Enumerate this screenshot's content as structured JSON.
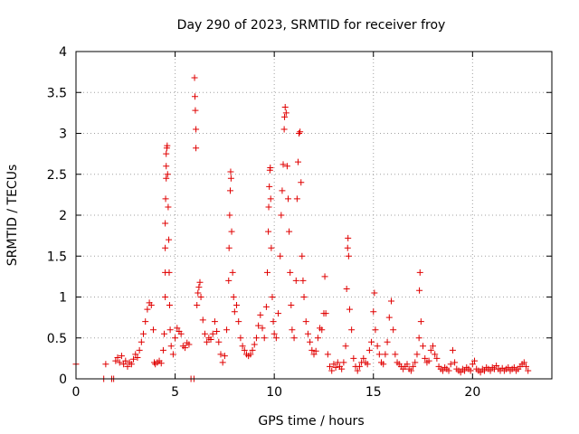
{
  "chart_data": {
    "type": "scatter",
    "title": "Day 290 of 2023, SRMTID for receiver froy",
    "xlabel": "GPS time / hours",
    "ylabel": "SRMTID / TECUs",
    "xlim": [
      0,
      24
    ],
    "ylim": [
      0,
      4
    ],
    "x_ticks": [
      0,
      5,
      10,
      15,
      20
    ],
    "x_tick_labels": [
      "0",
      "5",
      "10",
      "15",
      "20"
    ],
    "y_ticks": [
      0,
      0.5,
      1,
      1.5,
      2,
      2.5,
      3,
      3.5,
      4
    ],
    "y_tick_labels": [
      "0",
      "0.5",
      "1",
      "1.5",
      "2",
      "2.5",
      "3",
      "3.5",
      "4"
    ],
    "grid": true,
    "marker": "plus",
    "series": [
      {
        "name": "SRMTID",
        "color": "#e00000",
        "points": [
          [
            0.0,
            0.18
          ],
          [
            1.4,
            0.0
          ],
          [
            1.5,
            0.18
          ],
          [
            1.8,
            0.0
          ],
          [
            1.9,
            0.0
          ],
          [
            2.0,
            0.22
          ],
          [
            2.1,
            0.26
          ],
          [
            2.2,
            0.2
          ],
          [
            2.3,
            0.28
          ],
          [
            2.4,
            0.18
          ],
          [
            2.5,
            0.22
          ],
          [
            2.6,
            0.15
          ],
          [
            2.7,
            0.2
          ],
          [
            2.8,
            0.18
          ],
          [
            2.9,
            0.24
          ],
          [
            3.0,
            0.3
          ],
          [
            3.1,
            0.26
          ],
          [
            3.2,
            0.35
          ],
          [
            3.3,
            0.45
          ],
          [
            3.4,
            0.55
          ],
          [
            3.5,
            0.7
          ],
          [
            3.6,
            0.85
          ],
          [
            3.7,
            0.93
          ],
          [
            3.8,
            0.9
          ],
          [
            3.9,
            0.6
          ],
          [
            3.95,
            0.2
          ],
          [
            4.0,
            0.18
          ],
          [
            4.1,
            0.2
          ],
          [
            4.2,
            0.22
          ],
          [
            4.3,
            0.19
          ],
          [
            4.4,
            0.35
          ],
          [
            4.45,
            0.55
          ],
          [
            4.5,
            1.0
          ],
          [
            4.5,
            1.3
          ],
          [
            4.5,
            1.6
          ],
          [
            4.5,
            1.9
          ],
          [
            4.52,
            2.2
          ],
          [
            4.55,
            2.45
          ],
          [
            4.55,
            2.6
          ],
          [
            4.55,
            2.75
          ],
          [
            4.58,
            2.82
          ],
          [
            4.6,
            2.85
          ],
          [
            4.62,
            2.5
          ],
          [
            4.65,
            2.1
          ],
          [
            4.68,
            1.7
          ],
          [
            4.7,
            1.3
          ],
          [
            4.72,
            0.9
          ],
          [
            4.75,
            0.6
          ],
          [
            4.8,
            0.4
          ],
          [
            4.9,
            0.3
          ],
          [
            5.0,
            0.5
          ],
          [
            5.1,
            0.62
          ],
          [
            5.2,
            0.58
          ],
          [
            5.3,
            0.55
          ],
          [
            5.4,
            0.4
          ],
          [
            5.5,
            0.38
          ],
          [
            5.6,
            0.44
          ],
          [
            5.7,
            0.42
          ],
          [
            5.8,
            0.0
          ],
          [
            5.95,
            0.0
          ],
          [
            5.98,
            3.68
          ],
          [
            6.0,
            3.45
          ],
          [
            6.02,
            3.28
          ],
          [
            6.05,
            3.05
          ],
          [
            6.05,
            2.82
          ],
          [
            6.1,
            0.9
          ],
          [
            6.15,
            1.05
          ],
          [
            6.2,
            1.12
          ],
          [
            6.25,
            1.18
          ],
          [
            6.3,
            1.0
          ],
          [
            6.4,
            0.72
          ],
          [
            6.5,
            0.55
          ],
          [
            6.6,
            0.45
          ],
          [
            6.7,
            0.5
          ],
          [
            6.8,
            0.48
          ],
          [
            6.9,
            0.55
          ],
          [
            7.0,
            0.7
          ],
          [
            7.1,
            0.58
          ],
          [
            7.2,
            0.45
          ],
          [
            7.3,
            0.3
          ],
          [
            7.4,
            0.2
          ],
          [
            7.5,
            0.28
          ],
          [
            7.6,
            0.6
          ],
          [
            7.7,
            1.2
          ],
          [
            7.72,
            1.6
          ],
          [
            7.75,
            2.0
          ],
          [
            7.78,
            2.3
          ],
          [
            7.8,
            2.53
          ],
          [
            7.82,
            2.45
          ],
          [
            7.85,
            1.8
          ],
          [
            7.9,
            1.3
          ],
          [
            7.95,
            1.0
          ],
          [
            8.0,
            0.82
          ],
          [
            8.1,
            0.9
          ],
          [
            8.2,
            0.7
          ],
          [
            8.3,
            0.5
          ],
          [
            8.4,
            0.4
          ],
          [
            8.5,
            0.35
          ],
          [
            8.6,
            0.3
          ],
          [
            8.7,
            0.28
          ],
          [
            8.8,
            0.3
          ],
          [
            8.9,
            0.35
          ],
          [
            9.0,
            0.42
          ],
          [
            9.1,
            0.5
          ],
          [
            9.2,
            0.65
          ],
          [
            9.3,
            0.78
          ],
          [
            9.4,
            0.62
          ],
          [
            9.5,
            0.5
          ],
          [
            9.6,
            0.88
          ],
          [
            9.65,
            1.3
          ],
          [
            9.7,
            1.8
          ],
          [
            9.72,
            2.1
          ],
          [
            9.75,
            2.35
          ],
          [
            9.78,
            2.55
          ],
          [
            9.8,
            2.58
          ],
          [
            9.82,
            2.2
          ],
          [
            9.85,
            1.6
          ],
          [
            9.9,
            1.0
          ],
          [
            9.95,
            0.7
          ],
          [
            10.0,
            0.55
          ],
          [
            10.1,
            0.5
          ],
          [
            10.2,
            0.8
          ],
          [
            10.3,
            1.5
          ],
          [
            10.35,
            2.0
          ],
          [
            10.4,
            2.3
          ],
          [
            10.45,
            2.62
          ],
          [
            10.5,
            3.05
          ],
          [
            10.52,
            3.2
          ],
          [
            10.55,
            3.32
          ],
          [
            10.6,
            3.25
          ],
          [
            10.65,
            2.6
          ],
          [
            10.7,
            2.2
          ],
          [
            10.75,
            1.8
          ],
          [
            10.8,
            1.3
          ],
          [
            10.85,
            0.9
          ],
          [
            10.9,
            0.6
          ],
          [
            11.0,
            0.5
          ],
          [
            11.1,
            1.2
          ],
          [
            11.15,
            2.2
          ],
          [
            11.2,
            2.65
          ],
          [
            11.25,
            3.0
          ],
          [
            11.3,
            3.02
          ],
          [
            11.35,
            2.4
          ],
          [
            11.4,
            1.5
          ],
          [
            11.45,
            1.2
          ],
          [
            11.5,
            1.0
          ],
          [
            11.6,
            0.7
          ],
          [
            11.7,
            0.55
          ],
          [
            11.8,
            0.45
          ],
          [
            11.9,
            0.35
          ],
          [
            12.0,
            0.3
          ],
          [
            12.1,
            0.34
          ],
          [
            12.2,
            0.5
          ],
          [
            12.3,
            0.62
          ],
          [
            12.4,
            0.6
          ],
          [
            12.5,
            0.8
          ],
          [
            12.55,
            1.25
          ],
          [
            12.6,
            0.8
          ],
          [
            12.7,
            0.3
          ],
          [
            12.8,
            0.15
          ],
          [
            12.9,
            0.1
          ],
          [
            13.0,
            0.18
          ],
          [
            13.1,
            0.14
          ],
          [
            13.2,
            0.2
          ],
          [
            13.3,
            0.15
          ],
          [
            13.4,
            0.12
          ],
          [
            13.5,
            0.2
          ],
          [
            13.6,
            0.4
          ],
          [
            13.65,
            1.1
          ],
          [
            13.7,
            1.6
          ],
          [
            13.72,
            1.72
          ],
          [
            13.75,
            1.5
          ],
          [
            13.8,
            0.85
          ],
          [
            13.9,
            0.6
          ],
          [
            14.0,
            0.25
          ],
          [
            14.1,
            0.15
          ],
          [
            14.2,
            0.1
          ],
          [
            14.3,
            0.15
          ],
          [
            14.4,
            0.2
          ],
          [
            14.5,
            0.25
          ],
          [
            14.6,
            0.2
          ],
          [
            14.7,
            0.18
          ],
          [
            14.8,
            0.35
          ],
          [
            14.9,
            0.45
          ],
          [
            15.0,
            0.82
          ],
          [
            15.05,
            1.05
          ],
          [
            15.1,
            0.6
          ],
          [
            15.2,
            0.4
          ],
          [
            15.3,
            0.3
          ],
          [
            15.4,
            0.2
          ],
          [
            15.5,
            0.18
          ],
          [
            15.6,
            0.3
          ],
          [
            15.7,
            0.45
          ],
          [
            15.8,
            0.75
          ],
          [
            15.9,
            0.95
          ],
          [
            16.0,
            0.6
          ],
          [
            16.1,
            0.3
          ],
          [
            16.2,
            0.2
          ],
          [
            16.3,
            0.18
          ],
          [
            16.4,
            0.15
          ],
          [
            16.5,
            0.12
          ],
          [
            16.6,
            0.15
          ],
          [
            16.7,
            0.18
          ],
          [
            16.8,
            0.12
          ],
          [
            16.9,
            0.1
          ],
          [
            17.0,
            0.15
          ],
          [
            17.1,
            0.2
          ],
          [
            17.2,
            0.3
          ],
          [
            17.3,
            0.5
          ],
          [
            17.32,
            1.08
          ],
          [
            17.35,
            1.3
          ],
          [
            17.4,
            0.7
          ],
          [
            17.5,
            0.4
          ],
          [
            17.6,
            0.25
          ],
          [
            17.7,
            0.2
          ],
          [
            17.8,
            0.22
          ],
          [
            17.9,
            0.35
          ],
          [
            18.0,
            0.4
          ],
          [
            18.1,
            0.3
          ],
          [
            18.2,
            0.25
          ],
          [
            18.3,
            0.15
          ],
          [
            18.4,
            0.12
          ],
          [
            18.5,
            0.1
          ],
          [
            18.6,
            0.14
          ],
          [
            18.7,
            0.12
          ],
          [
            18.8,
            0.1
          ],
          [
            18.9,
            0.18
          ],
          [
            19.0,
            0.35
          ],
          [
            19.1,
            0.2
          ],
          [
            19.2,
            0.12
          ],
          [
            19.3,
            0.1
          ],
          [
            19.4,
            0.08
          ],
          [
            19.5,
            0.12
          ],
          [
            19.6,
            0.1
          ],
          [
            19.7,
            0.14
          ],
          [
            19.8,
            0.12
          ],
          [
            19.9,
            0.1
          ],
          [
            20.0,
            0.18
          ],
          [
            20.1,
            0.22
          ],
          [
            20.2,
            0.12
          ],
          [
            20.3,
            0.1
          ],
          [
            20.4,
            0.08
          ],
          [
            20.5,
            0.12
          ],
          [
            20.6,
            0.1
          ],
          [
            20.7,
            0.14
          ],
          [
            20.8,
            0.12
          ],
          [
            20.9,
            0.1
          ],
          [
            21.0,
            0.14
          ],
          [
            21.1,
            0.12
          ],
          [
            21.2,
            0.16
          ],
          [
            21.3,
            0.12
          ],
          [
            21.4,
            0.1
          ],
          [
            21.5,
            0.13
          ],
          [
            21.6,
            0.1
          ],
          [
            21.7,
            0.12
          ],
          [
            21.8,
            0.14
          ],
          [
            21.9,
            0.1
          ],
          [
            22.0,
            0.12
          ],
          [
            22.1,
            0.14
          ],
          [
            22.2,
            0.1
          ],
          [
            22.3,
            0.12
          ],
          [
            22.4,
            0.15
          ],
          [
            22.5,
            0.18
          ],
          [
            22.6,
            0.2
          ],
          [
            22.7,
            0.15
          ],
          [
            22.8,
            0.1
          ]
        ]
      }
    ]
  }
}
